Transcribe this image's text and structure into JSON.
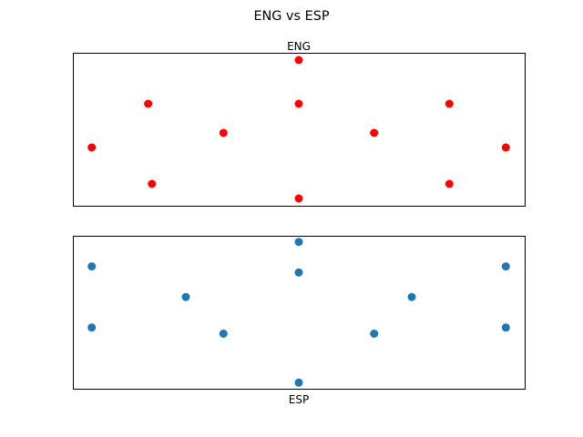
{
  "figure": {
    "title": "ENG vs ESP"
  },
  "chart_data": [
    {
      "type": "scatter",
      "title": "ENG",
      "xlabel": "",
      "ylabel": "",
      "color": "#ff0000",
      "show_ticks": false,
      "grid": false,
      "x": [
        0,
        0.16,
        0.35,
        0.55,
        0.55,
        0.55,
        0.75,
        0.95,
        0.95,
        1.1,
        0.15
      ],
      "y": [
        0.5,
        0.25,
        0.6,
        0.15,
        0.8,
        1.1,
        0.6,
        0.8,
        0.25,
        0.5,
        0.8
      ],
      "xlim": [
        -0.05,
        1.15
      ],
      "ylim": [
        0.1,
        1.15
      ]
    },
    {
      "type": "scatter",
      "title": "",
      "xlabel": "ESP",
      "ylabel": "",
      "color": "#1f77b4",
      "show_ticks": false,
      "grid": false,
      "x": [
        0,
        0,
        0.25,
        0.35,
        0.55,
        0.55,
        0.55,
        0.75,
        0.85,
        1.1,
        1.1
      ],
      "y": [
        0.3,
        0.8,
        0.55,
        0.25,
        -0.15,
        0.75,
        1.0,
        0.25,
        0.55,
        0.3,
        0.8
      ],
      "xlim": [
        -0.05,
        1.15
      ],
      "ylim": [
        -0.2,
        1.05
      ]
    }
  ]
}
